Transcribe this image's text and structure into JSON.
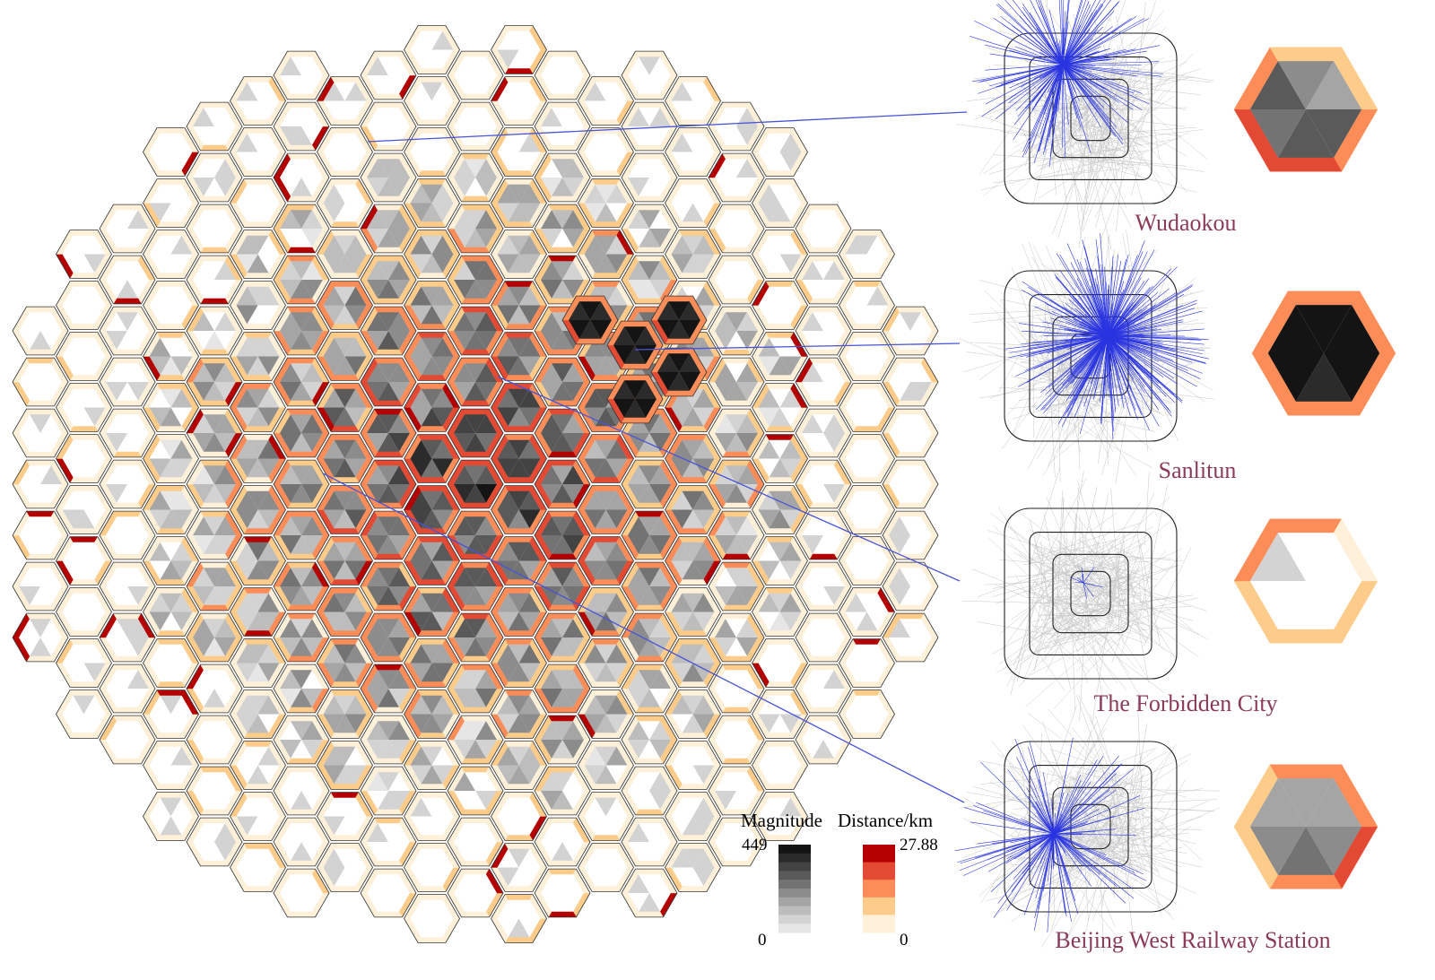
{
  "legend": {
    "magnitude_title": "Magnitude",
    "magnitude_max": "449",
    "magnitude_min": "0",
    "distance_title": "Distance/km",
    "distance_max": "27.88",
    "distance_min": "0",
    "gray_ramp": [
      "#141414",
      "#2b2b2b",
      "#434343",
      "#5a5a5a",
      "#737373",
      "#8c8c8c",
      "#a5a5a5",
      "#bdbdbd",
      "#d3d3d3",
      "#e6e6e6"
    ],
    "distance_colors": [
      "#b40000",
      "#e34a33",
      "#fc8d59",
      "#fdcc8a",
      "#fef0d9"
    ]
  },
  "places": [
    {
      "name": "Wudaokou",
      "edge_colors": [
        "#fc8d59",
        "#e34a33",
        "#e34a33",
        "#fc8d59",
        "#fdcc8a",
        "#fdcc8a"
      ],
      "tri_values": [
        0.72,
        0.72,
        0.55,
        0.72,
        0.45,
        0.3
      ]
    },
    {
      "name": "Sanlitun",
      "edge_colors": [
        "#fc8d59",
        "#fc8d59",
        "#fc8d59",
        "#fc8d59",
        "#fc8d59",
        "#fc8d59"
      ],
      "tri_values": [
        0.95,
        0.85,
        0.98,
        0.95,
        0.98,
        0.95
      ]
    },
    {
      "name": "The Forbidden City",
      "edge_colors": [
        "#fdcc8a",
        "#fdcc8a",
        "#fdcc8a",
        "#fc8d59",
        "#fc8d59",
        "#fef0d9"
      ],
      "tri_values": [
        0,
        0,
        0,
        0.15,
        0,
        0
      ]
    },
    {
      "name": "Beijing West Railway Station",
      "edge_colors": [
        "#e34a33",
        "#fc8d59",
        "#fdcc8a",
        "#fdcc8a",
        "#fc8d59",
        "#fc8d59"
      ],
      "tri_values": [
        0.5,
        0.55,
        0.45,
        0.3,
        0.3,
        0.3
      ]
    }
  ]
}
